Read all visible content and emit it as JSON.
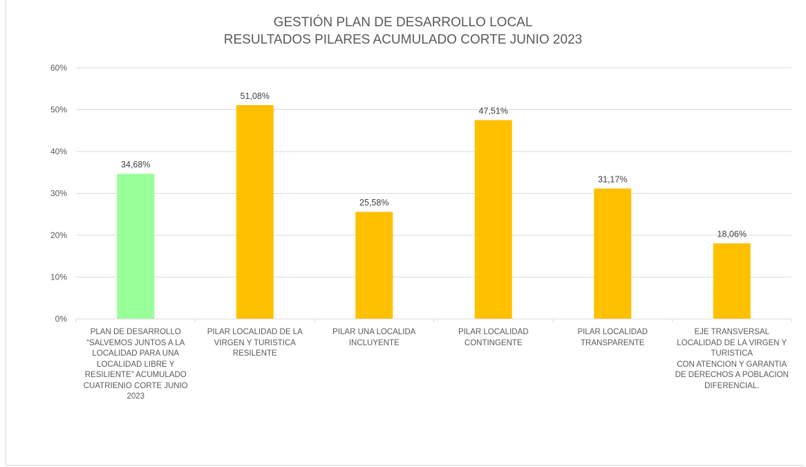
{
  "chart_data": {
    "type": "bar",
    "title": "GESTIÓN PLAN DE DESARROLLO LOCAL",
    "subtitle": "RESULTADOS PILARES ACUMULADO CORTE JUNIO 2023",
    "ylim": [
      0,
      60
    ],
    "yticks": [
      "0%",
      "10%",
      "20%",
      "30%",
      "40%",
      "50%",
      "60%"
    ],
    "grid": true,
    "categories": [
      [
        "PLAN DE DESARROLLO",
        "“SALVEMOS JUNTOS A LA",
        "LOCALIDAD PARA UNA",
        "LOCALIDAD LIBRE Y",
        "RESILIENTE” ACUMULADO",
        "CUATRIENIO CORTE JUNIO",
        "2023"
      ],
      [
        "PILAR LOCALIDAD DE LA",
        "VIRGEN Y TURISTICA",
        "RESILENTE"
      ],
      [
        "PILAR UNA LOCALIDA",
        "INCLUYENTE"
      ],
      [
        "PILAR LOCALIDAD",
        "CONTINGENTE"
      ],
      [
        "PILAR LOCALIDAD",
        "TRANSPARENTE"
      ],
      [
        "EJE TRANSVERSAL",
        "LOCALIDAD DE LA VIRGEN Y",
        "TURISTICA",
        "CON ATENCION Y GARANTIA",
        "DE DERECHOS A POBLACION",
        "DIFERENCIAL."
      ]
    ],
    "values": [
      34.68,
      51.08,
      25.58,
      47.51,
      31.17,
      18.06
    ],
    "data_labels": [
      "34,68%",
      "51,08%",
      "25,58%",
      "47,51%",
      "31,17%",
      "18,06%"
    ],
    "colors": [
      "#99ff99",
      "#ffc000",
      "#ffc000",
      "#ffc000",
      "#ffc000",
      "#ffc000"
    ],
    "gridline_color": "#d9d9d9"
  }
}
